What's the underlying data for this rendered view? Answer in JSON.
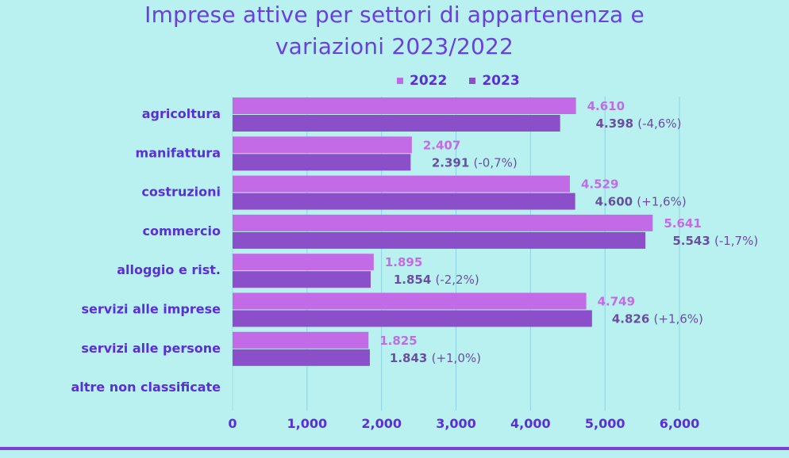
{
  "title_line1": "Imprese attive per settori di appartenenza e",
  "title_line2": "variazioni 2023/2022",
  "colors": {
    "s2022": "#c36be6",
    "s2023": "#8a4fc9",
    "text": "#5b2fd6",
    "label2022": "#c36be6",
    "label2023": "#6a4f9e",
    "grid": "#8fd3e0"
  },
  "chart_data": {
    "type": "bar",
    "orientation": "horizontal",
    "title": "Imprese attive per settori di appartenenza e variazioni 2023/2022",
    "categories": [
      "agricoltura",
      "manifattura",
      "costruzioni",
      "commercio",
      "alloggio e rist.",
      "servizi alle imprese",
      "servizi alle persone",
      "altre non classificate"
    ],
    "series": [
      {
        "name": "2022",
        "values": [
          4610,
          2407,
          4529,
          5641,
          1895,
          4749,
          1825,
          0
        ],
        "labels": [
          "4.610",
          "2.407",
          "4.529",
          "5.641",
          "1.895",
          "4.749",
          "1.825",
          ""
        ]
      },
      {
        "name": "2023",
        "values": [
          4398,
          2391,
          4600,
          5543,
          1854,
          4826,
          1843,
          0
        ],
        "labels": [
          "4.398",
          "2.391",
          "4.600",
          "5.543",
          "1.854",
          "4.826",
          "1.843",
          ""
        ],
        "changes": [
          "(-4,6%)",
          "(-0,7%)",
          "(+1,6%)",
          "(-1,7%)",
          "(-2,2%)",
          "(+1,6%)",
          "(+1,0%)",
          ""
        ]
      }
    ],
    "xticks": [
      "0",
      "1,000",
      "2,000",
      "3,000",
      "4,000",
      "5,000",
      "6,000"
    ],
    "xlim": [
      0,
      6000
    ],
    "legend_position": "top",
    "grid": true
  }
}
